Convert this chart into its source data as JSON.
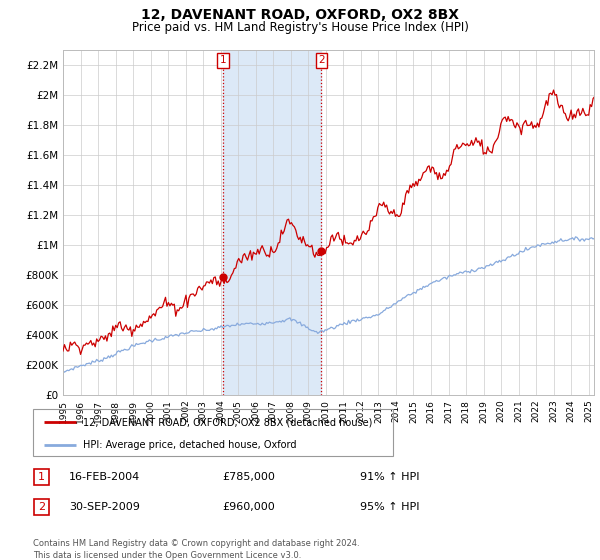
{
  "title": "12, DAVENANT ROAD, OXFORD, OX2 8BX",
  "subtitle": "Price paid vs. HM Land Registry's House Price Index (HPI)",
  "ylim": [
    0,
    2300000
  ],
  "yticks": [
    0,
    200000,
    400000,
    600000,
    800000,
    1000000,
    1200000,
    1400000,
    1600000,
    1800000,
    2000000,
    2200000
  ],
  "ytick_labels": [
    "£0",
    "£200K",
    "£400K",
    "£600K",
    "£800K",
    "£1M",
    "£1.2M",
    "£1.4M",
    "£1.6M",
    "£1.8M",
    "£2M",
    "£2.2M"
  ],
  "x_start_year": 1995,
  "x_end_year": 2025,
  "t1_year": 2004.12,
  "t2_year": 2009.75,
  "highlight_color": "#dce9f7",
  "transaction1_date": "16-FEB-2004",
  "transaction1_price": "£785,000",
  "transaction1_hpi": "91% ↑ HPI",
  "transaction1_label": "1",
  "transaction2_date": "30-SEP-2009",
  "transaction2_price": "£960,000",
  "transaction2_hpi": "95% ↑ HPI",
  "transaction2_label": "2",
  "line1_color": "#cc0000",
  "line2_color": "#88aadd",
  "line1_label": "12, DAVENANT ROAD, OXFORD, OX2 8BX (detached house)",
  "line2_label": "HPI: Average price, detached house, Oxford",
  "footer": "Contains HM Land Registry data © Crown copyright and database right 2024.\nThis data is licensed under the Open Government Licence v3.0.",
  "background_color": "#ffffff",
  "plot_bg_color": "#ffffff",
  "grid_color": "#cccccc"
}
